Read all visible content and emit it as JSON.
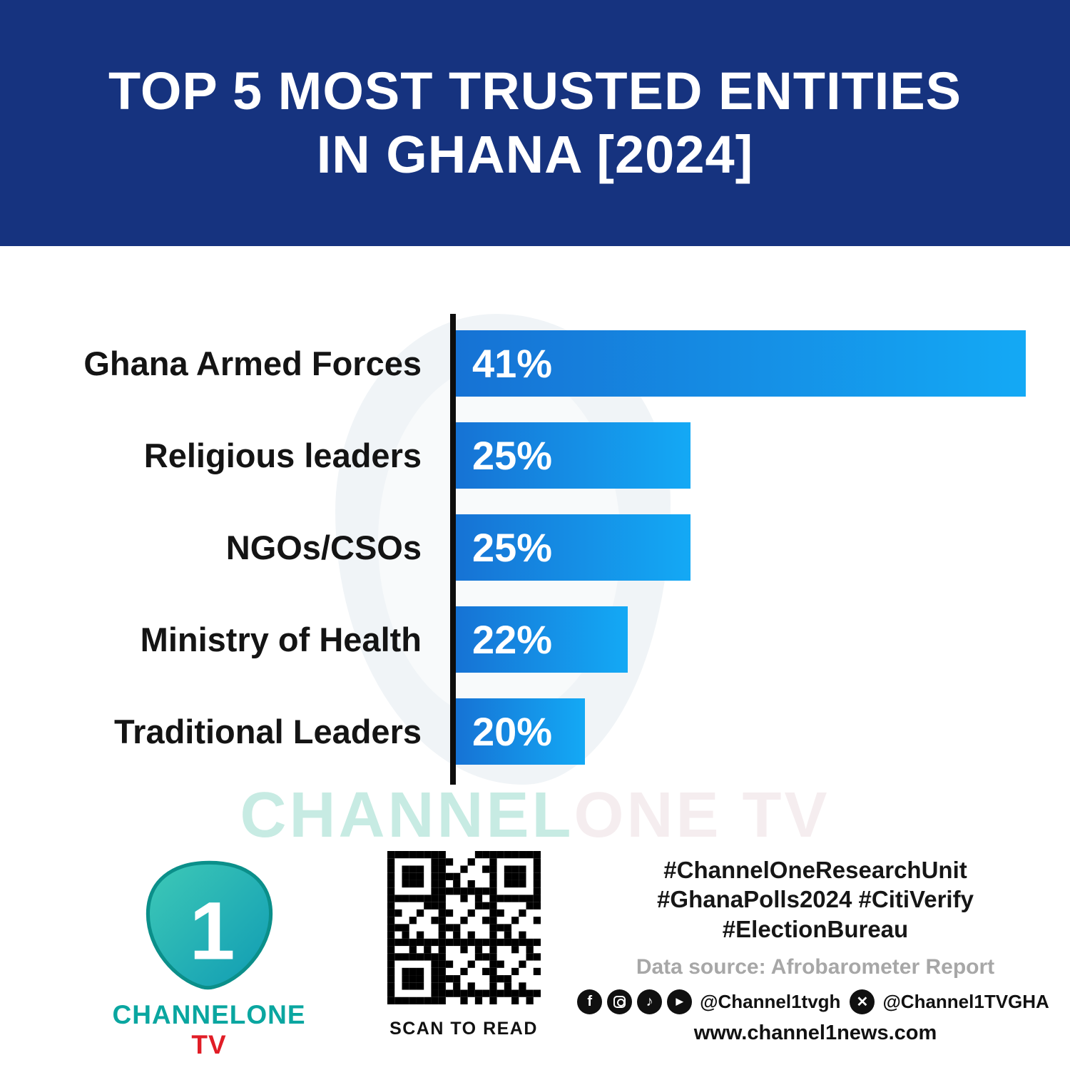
{
  "header": {
    "title_line1": "TOP 5 MOST TRUSTED ENTITIES",
    "title_line2": "IN GHANA [2024]",
    "bg_color": "#16337f",
    "text_color": "#ffffff"
  },
  "chart_data": {
    "type": "bar",
    "orientation": "horizontal",
    "title": "Top 5 Most Trusted Entities in Ghana [2024]",
    "categories": [
      "Ghana Armed Forces",
      "Religious leaders",
      "NGOs/CSOs",
      "Ministry of Health",
      "Traditional Leaders"
    ],
    "values": [
      41,
      25,
      25,
      22,
      20
    ],
    "value_labels": [
      "41%",
      "25%",
      "25%",
      "22%",
      "20%"
    ],
    "bar_display_width_pct": [
      100,
      41.4,
      41.4,
      30.4,
      23
    ],
    "bar_gradient": [
      "#1672d4",
      "#14a9f5"
    ],
    "axis_color": "#0d0d0d",
    "xlim": [
      0,
      41
    ],
    "grid": false,
    "legend": false,
    "xlabel": "",
    "ylabel": ""
  },
  "watermark": {
    "part1": "CHANNEL",
    "part2": "ONE TV",
    "color1": "#c7ebe3",
    "color2": "#f5edef"
  },
  "footer": {
    "logo": {
      "numeral": "1",
      "brand_part1": "CHANNELONE ",
      "brand_part2": "TV",
      "teal": "#0aa6a0",
      "red": "#e11d26"
    },
    "qr_caption": "SCAN TO READ",
    "hashtags_line1": "#ChannelOneResearchUnit",
    "hashtags_line2": "#GhanaPolls2024 #CitiVerify",
    "hashtags_line3": "#ElectionBureau",
    "data_source": "Data source: Afrobarometer Report",
    "social": {
      "handle1": "@Channel1tvgh",
      "handle2": "@Channel1TVGHA",
      "website": "www.channel1news.com"
    }
  }
}
